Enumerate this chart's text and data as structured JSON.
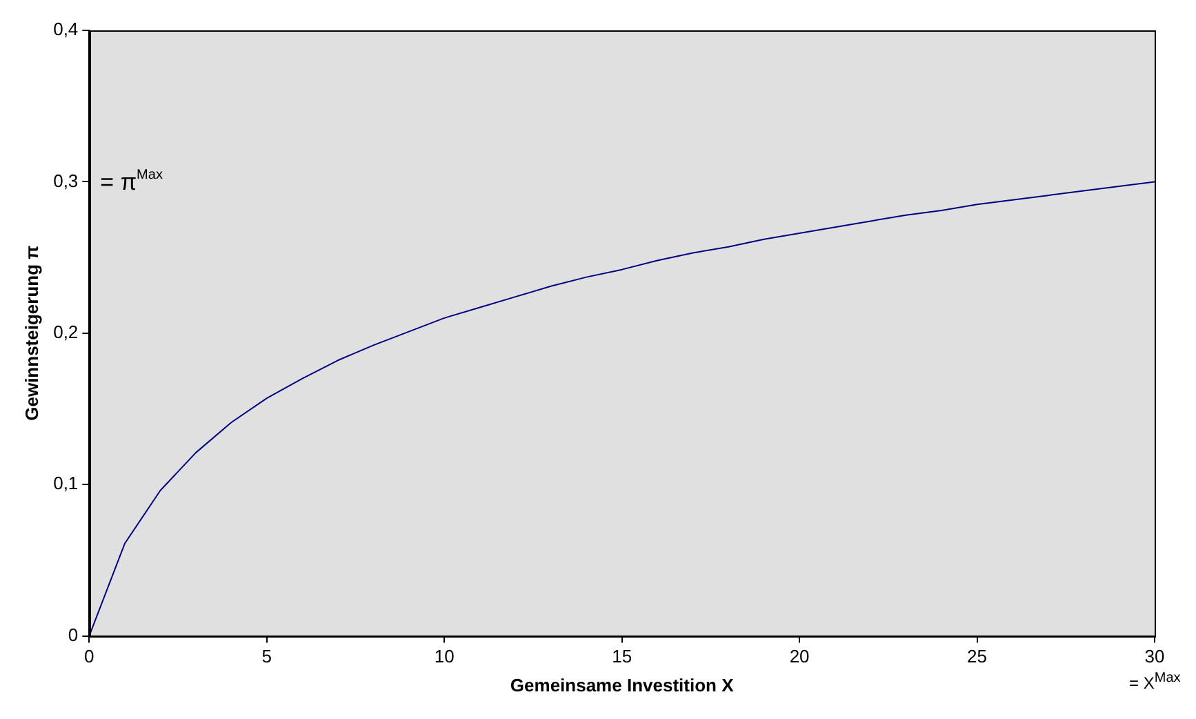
{
  "chart_data": {
    "type": "line",
    "xlabel": "Gemeinsame Investition X",
    "ylabel": "Gewinnsteigerung π",
    "x": [
      0,
      1,
      2,
      3,
      4,
      5,
      6,
      7,
      8,
      9,
      10,
      11,
      12,
      13,
      14,
      15,
      16,
      17,
      18,
      19,
      20,
      21,
      22,
      23,
      24,
      25,
      26,
      27,
      28,
      29,
      30
    ],
    "series": [
      {
        "color": "#000080",
        "values": [
          0,
          0.061,
          0.096,
          0.121,
          0.141,
          0.157,
          0.17,
          0.182,
          0.192,
          0.201,
          0.21,
          0.217,
          0.224,
          0.231,
          0.237,
          0.242,
          0.248,
          0.253,
          0.257,
          0.262,
          0.266,
          0.27,
          0.274,
          0.278,
          0.281,
          0.285,
          0.288,
          0.291,
          0.294,
          0.297,
          0.3
        ]
      }
    ],
    "xlim": [
      0,
      30
    ],
    "xticks": [
      0,
      5,
      10,
      15,
      20,
      25,
      30
    ],
    "ylim": [
      0,
      0.4
    ],
    "yticks": [
      0,
      {
        "value": 0.1,
        "label": "0,1"
      },
      {
        "value": 0.2,
        "label": "0,2"
      },
      {
        "value": 0.3,
        "label": "0,3"
      },
      {
        "value": 0.4,
        "label": "0,4"
      }
    ],
    "annotations": [
      "= π$^{Max}$",
      "= X$^{Max}$"
    ],
    "grid": false,
    "legend": false,
    "marker": "none",
    "line_style": "solid"
  }
}
